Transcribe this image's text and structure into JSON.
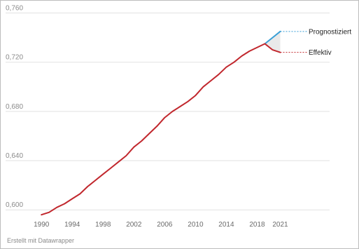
{
  "chart_data": {
    "type": "line",
    "title": "",
    "xlabel": "",
    "ylabel": "",
    "ylim": [
      0.595,
      0.762
    ],
    "xlim": [
      1988.8,
      2021.5
    ],
    "y_ticks": [
      "0,760",
      "0,720",
      "0,680",
      "0,640",
      "0,600"
    ],
    "y_tick_values": [
      0.76,
      0.72,
      0.68,
      0.64,
      0.6
    ],
    "x_ticks": [
      "1990",
      "1994",
      "1998",
      "2002",
      "2006",
      "2010",
      "2014",
      "2018",
      "2021"
    ],
    "x_tick_values": [
      1990,
      1994,
      1998,
      2002,
      2006,
      2010,
      2014,
      2018,
      2021
    ],
    "grid": true,
    "series": [
      {
        "name": "Effektiv",
        "color": "#c1272d",
        "x": [
          1990,
          1991,
          1992,
          1993,
          1994,
          1995,
          1996,
          1997,
          1998,
          1999,
          2000,
          2001,
          2002,
          2003,
          2004,
          2005,
          2006,
          2007,
          2008,
          2009,
          2010,
          2011,
          2012,
          2013,
          2014,
          2015,
          2016,
          2017,
          2018,
          2019,
          2020,
          2021
        ],
        "y": [
          0.596,
          0.598,
          0.602,
          0.605,
          0.609,
          0.613,
          0.619,
          0.624,
          0.629,
          0.634,
          0.639,
          0.644,
          0.651,
          0.656,
          0.662,
          0.668,
          0.675,
          0.68,
          0.684,
          0.688,
          0.693,
          0.7,
          0.705,
          0.71,
          0.716,
          0.72,
          0.725,
          0.729,
          0.732,
          0.735,
          0.73,
          0.728
        ]
      },
      {
        "name": "Prognostiziert",
        "color": "#3a9fd6",
        "x": [
          2019,
          2020,
          2021
        ],
        "y": [
          0.735,
          0.74,
          0.745
        ]
      }
    ]
  },
  "credit": "Erstellt mit Datawrapper"
}
